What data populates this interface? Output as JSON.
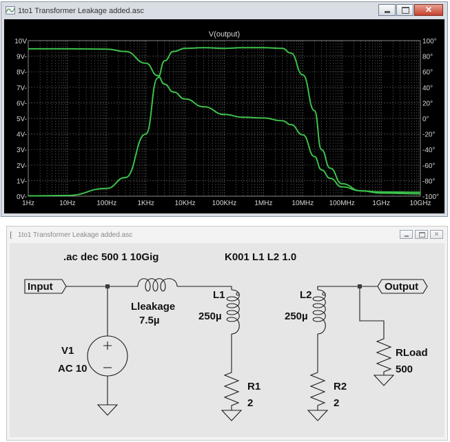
{
  "plot_window": {
    "title": "1to1 Transformer Leakage added.asc",
    "minimize_label": "",
    "maximize_label": "",
    "close_label": "✕"
  },
  "plot": {
    "trace_label": "V(output)"
  },
  "chart_data": {
    "type": "line",
    "title": "V(output)",
    "x_scale": "log",
    "x_ticks": [
      "1Hz",
      "10Hz",
      "100Hz",
      "1KHz",
      "10KHz",
      "100KHz",
      "1MHz",
      "10MHz",
      "100MHz",
      "1GHz",
      "10GHz"
    ],
    "x_tick_values": [
      1,
      10,
      100,
      1000,
      10000,
      100000,
      1000000,
      10000000,
      100000000,
      1000000000,
      10000000000
    ],
    "y_left_ticks": [
      "0V-",
      "1V-",
      "2V-",
      "3V-",
      "4V-",
      "5V-",
      "6V-",
      "7V-",
      "8V-",
      "9V-",
      "10V"
    ],
    "y_right_ticks": [
      "-100°",
      "-80°",
      "-60°",
      "-40°",
      "-20°",
      "0°",
      "20°",
      "40°",
      "60°",
      "80°",
      "100°"
    ],
    "y_left_range": [
      0,
      10
    ],
    "y_right_range": [
      -100,
      100
    ],
    "grid": true,
    "colors": {
      "trace": "#3cc24a",
      "grid": "#5a5a5a",
      "axis_text": "#d8d8d8",
      "background": "#000000"
    },
    "series": [
      {
        "axis": "left",
        "x": [
          1,
          10,
          100,
          300,
          1000,
          2000,
          3000,
          5000,
          10000,
          30000,
          100000,
          300000,
          1000000,
          3000000,
          5000000,
          10000000,
          20000000,
          30000000,
          50000000,
          100000000,
          300000000,
          1000000000,
          10000000000
        ],
        "y": [
          0.02,
          0.05,
          0.5,
          1.2,
          4.0,
          7.6,
          8.7,
          9.3,
          9.5,
          9.55,
          9.5,
          9.55,
          9.55,
          9.5,
          9.2,
          7.8,
          5.5,
          3.0,
          1.8,
          0.8,
          0.35,
          0.2,
          0.15
        ]
      },
      {
        "axis": "right",
        "x": [
          1,
          10,
          100,
          300,
          1000,
          2000,
          3000,
          5000,
          10000,
          30000,
          100000,
          300000,
          1000000,
          3000000,
          5000000,
          10000000,
          20000000,
          30000000,
          50000000,
          100000000,
          300000000,
          1000000000,
          10000000000
        ],
        "y": [
          89.5,
          89.5,
          89.0,
          86,
          71,
          55,
          44,
          34,
          25,
          15,
          5,
          1.5,
          0.5,
          -3,
          -8,
          -21,
          -49,
          -66,
          -77,
          -88,
          -93,
          -94.5,
          -95
        ]
      }
    ]
  },
  "sch_window": {
    "title": "1to1 Transformer Leakage added.asc",
    "icon": "⁅"
  },
  "schematic": {
    "directive_ac": ".ac dec 500 1 10Gig",
    "directive_k": "K001 L1 L2 1.0",
    "input_label": "Input",
    "output_label": "Output",
    "lleak_name": "Lleakage",
    "lleak_value": "7.5µ",
    "v1_name": "V1",
    "v1_value": "AC 10",
    "l1_name": "L1",
    "l1_value": "250µ",
    "l2_name": "L2",
    "l2_value": "250µ",
    "r1_name": "R1",
    "r1_value": "2",
    "r2_name": "R2",
    "r2_value": "2",
    "rload_name": "RLoad",
    "rload_value": "500"
  }
}
